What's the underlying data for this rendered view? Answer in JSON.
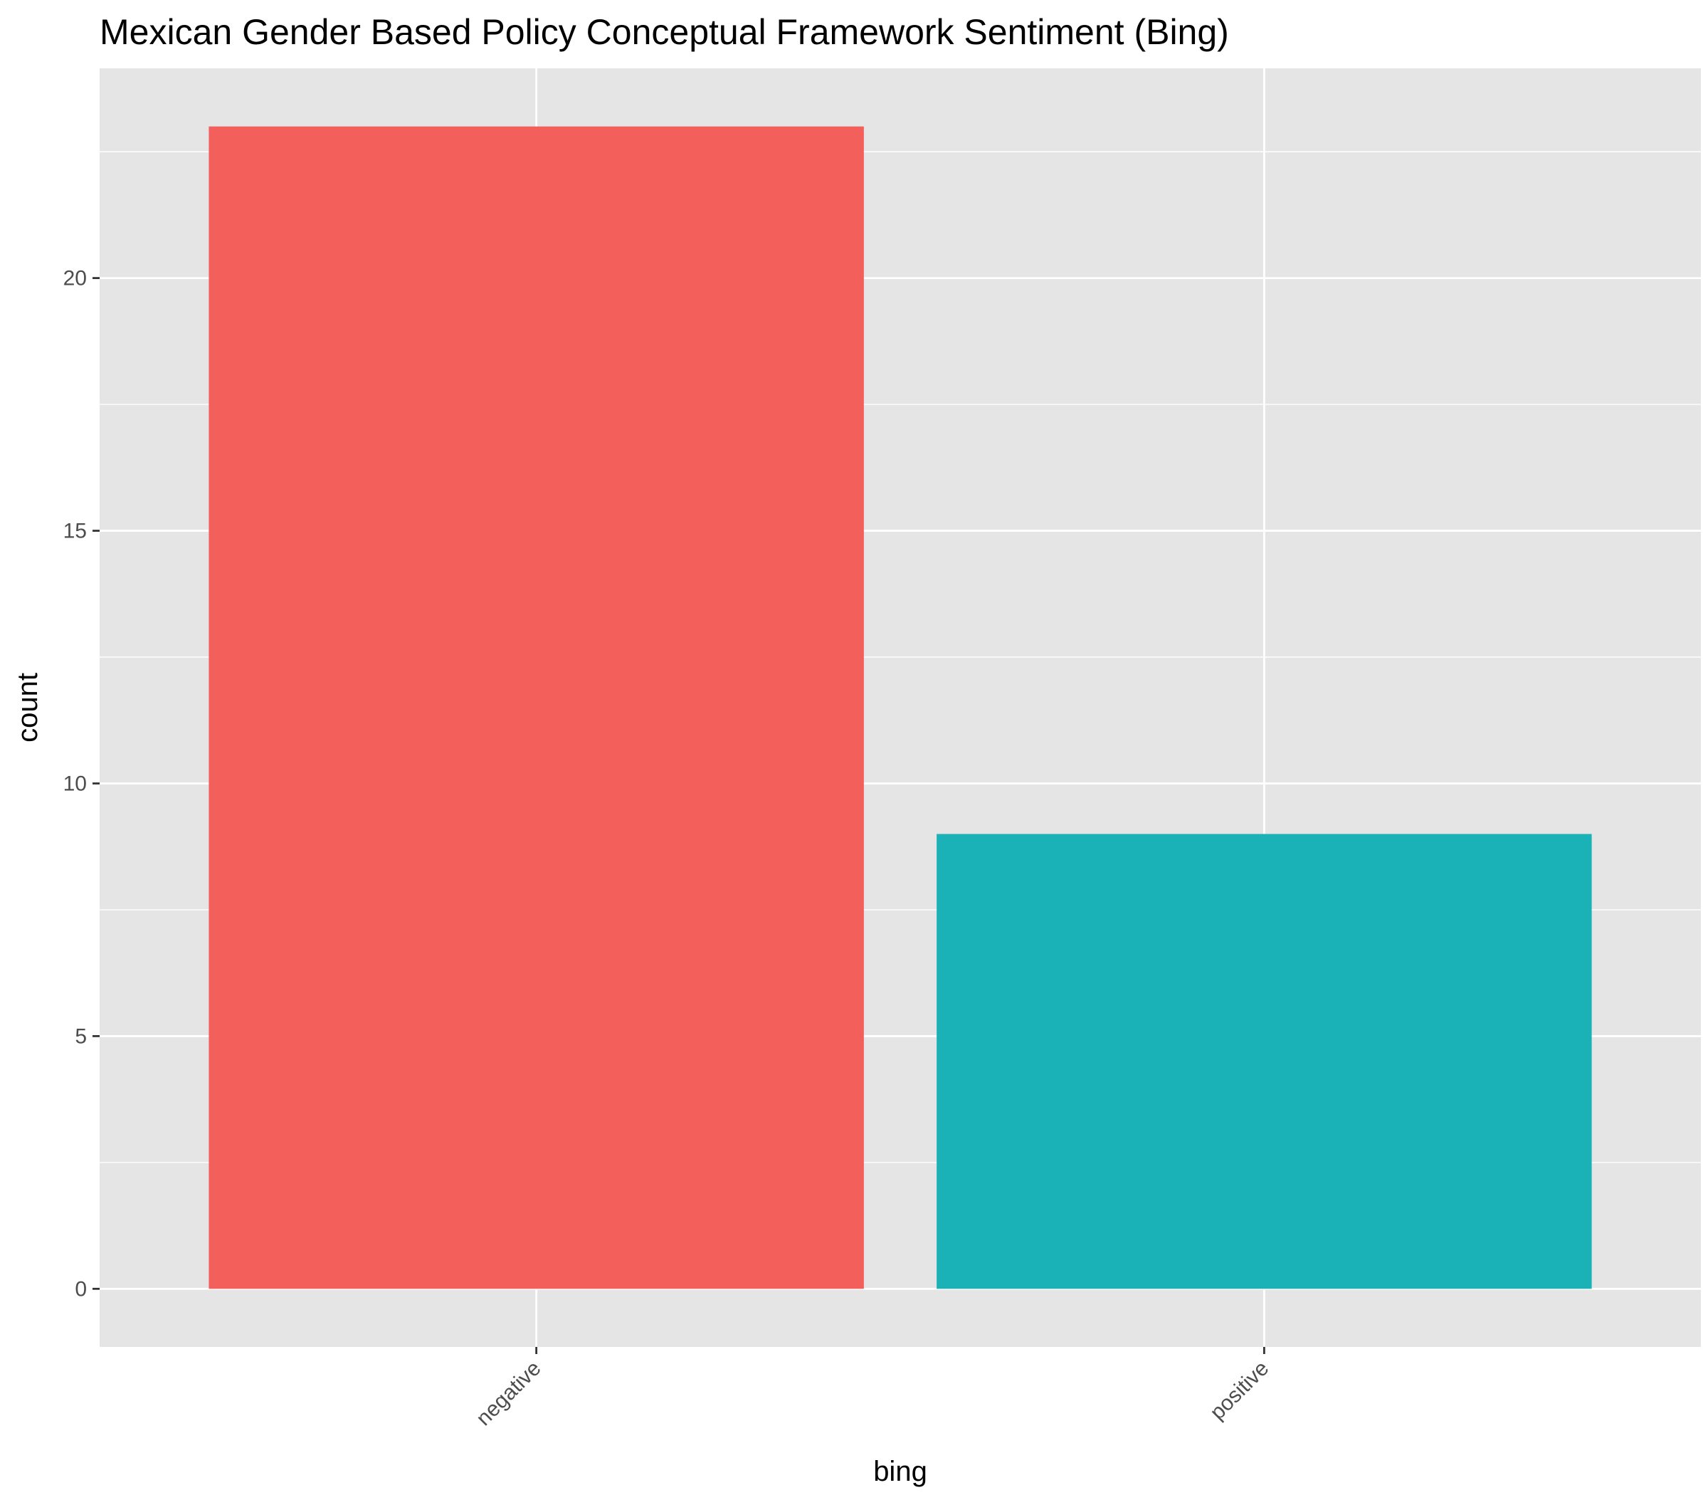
{
  "chart_data": {
    "type": "bar",
    "title": "Mexican Gender Based Policy Conceptual Framework Sentiment (Bing)",
    "xlabel": "bing",
    "ylabel": "count",
    "categories": [
      "negative",
      "positive"
    ],
    "values": [
      23,
      9
    ],
    "colors": [
      "#F3605C",
      "#1BB2B7"
    ],
    "ylim": [
      -1.15,
      24.15
    ],
    "yticks": [
      0,
      5,
      10,
      15,
      20
    ],
    "ytick_labels": [
      "0",
      "5",
      "10",
      "15",
      "20"
    ],
    "grid": true,
    "legend": "none",
    "panel_background": "#E5E5E5",
    "gridline_color": "#FFFFFF"
  }
}
